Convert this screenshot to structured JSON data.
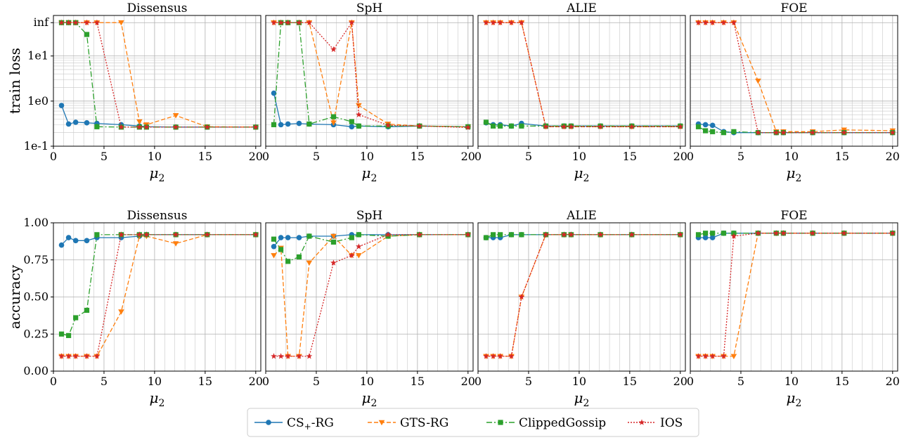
{
  "colors": {
    "CS+-RG": "#1f77b4",
    "GTS-RG": "#ff7f0e",
    "ClippedGossip": "#2ca02c",
    "IOS": "#d62728"
  },
  "legend": {
    "items": [
      {
        "key": "CS+-RG",
        "label_main": "CS",
        "label_sub": "+",
        "label_rest": "-RG"
      },
      {
        "key": "GTS-RG",
        "label": "GTS-RG"
      },
      {
        "key": "ClippedGossip",
        "label": "ClippedGossip"
      },
      {
        "key": "IOS",
        "label": "IOS"
      }
    ]
  },
  "chart_data": [
    {
      "type": "line",
      "title": "Dissensus",
      "metric": "train loss",
      "xlabel": "μ2",
      "ylabel": "train loss",
      "yscale": "log",
      "xlim": [
        0,
        20.5
      ],
      "xticks": [
        0,
        5,
        10,
        15,
        20
      ],
      "yticks": [
        "1e-1",
        "1e0",
        "1e1",
        "inf"
      ],
      "grid": true,
      "series": [
        {
          "name": "CS+-RG",
          "x": [
            0.8,
            1.5,
            2.2,
            3.3,
            4.3,
            6.7,
            8.5,
            9.2,
            12.1,
            15.2,
            20
          ],
          "y": [
            0.8,
            0.31,
            0.34,
            0.33,
            0.32,
            0.3,
            0.28,
            0.27,
            0.265,
            0.265,
            0.265
          ]
        },
        {
          "name": "GTS-RG",
          "x": [
            0.8,
            1.5,
            2.2,
            3.3,
            4.3,
            6.7,
            8.5,
            9.2,
            12.1,
            15.2,
            20
          ],
          "y": [
            "inf",
            "inf",
            "inf",
            "inf",
            "inf",
            "inf",
            0.35,
            0.3,
            0.48,
            0.27,
            0.265
          ]
        },
        {
          "name": "ClippedGossip",
          "x": [
            0.8,
            1.5,
            2.2,
            3.3,
            4.3,
            6.7,
            8.5,
            9.2,
            12.1,
            15.2,
            20
          ],
          "y": [
            "inf",
            "inf",
            "inf",
            30,
            0.27,
            0.265,
            0.265,
            0.265,
            0.265,
            0.265,
            0.265
          ]
        },
        {
          "name": "IOS",
          "x": [
            0.8,
            1.5,
            2.2,
            3.3,
            4.3,
            6.7,
            8.5,
            9.2,
            12.1,
            15.2,
            20
          ],
          "y": [
            "inf",
            "inf",
            "inf",
            "inf",
            "inf",
            0.265,
            0.265,
            0.265,
            0.265,
            0.265,
            0.265
          ]
        }
      ]
    },
    {
      "type": "line",
      "title": "SpH",
      "metric": "train loss",
      "xlabel": "μ2",
      "yscale": "log",
      "xlim": [
        0,
        20.5
      ],
      "xticks": [
        0,
        5,
        10,
        15,
        20
      ],
      "grid": true,
      "series": [
        {
          "name": "CS+-RG",
          "x": [
            0.8,
            1.5,
            2.2,
            3.3,
            4.3,
            6.7,
            8.5,
            9.2,
            12.1,
            15.2,
            20
          ],
          "y": [
            1.5,
            0.3,
            0.31,
            0.32,
            0.31,
            0.3,
            0.27,
            0.28,
            0.27,
            0.28,
            0.27
          ]
        },
        {
          "name": "GTS-RG",
          "x": [
            0.8,
            1.5,
            2.2,
            3.3,
            4.3,
            6.7,
            8.5,
            9.2,
            12.1,
            15.2,
            20
          ],
          "y": [
            "inf",
            "inf",
            "inf",
            "inf",
            "inf",
            0.33,
            "inf",
            0.8,
            0.31,
            0.28,
            0.27
          ]
        },
        {
          "name": "ClippedGossip",
          "x": [
            0.8,
            1.5,
            2.2,
            3.3,
            4.3,
            6.7,
            8.5,
            9.2,
            12.1,
            15.2,
            20
          ],
          "y": [
            0.3,
            "inf",
            "inf",
            "inf",
            0.31,
            0.45,
            0.35,
            0.28,
            0.28,
            0.28,
            0.27
          ]
        },
        {
          "name": "IOS",
          "x": [
            0.8,
            1.5,
            2.2,
            3.3,
            4.3,
            6.7,
            8.5,
            9.2,
            12.1,
            15.2,
            20
          ],
          "y": [
            "inf",
            "inf",
            "inf",
            "inf",
            "inf",
            14,
            "inf",
            0.5,
            0.29,
            0.28,
            0.26
          ]
        }
      ]
    },
    {
      "type": "line",
      "title": "ALIE",
      "metric": "train loss",
      "xlabel": "μ2",
      "yscale": "log",
      "xlim": [
        0,
        20.5
      ],
      "xticks": [
        0,
        5,
        10,
        15,
        20
      ],
      "grid": true,
      "series": [
        {
          "name": "CS+-RG",
          "x": [
            0.8,
            1.5,
            2.2,
            3.3,
            4.3,
            6.7,
            8.5,
            9.2,
            12.1,
            15.2,
            20
          ],
          "y": [
            0.33,
            0.3,
            0.3,
            0.28,
            0.32,
            0.28,
            0.28,
            0.28,
            0.28,
            0.28,
            0.28
          ]
        },
        {
          "name": "GTS-RG",
          "x": [
            0.8,
            1.5,
            2.2,
            3.3,
            4.3,
            6.7,
            8.5,
            9.2,
            12.1,
            15.2,
            20
          ],
          "y": [
            "inf",
            "inf",
            "inf",
            "inf",
            "inf",
            0.27,
            0.27,
            0.27,
            0.27,
            0.27,
            0.27
          ]
        },
        {
          "name": "ClippedGossip",
          "x": [
            0.8,
            1.5,
            2.2,
            3.3,
            4.3,
            6.7,
            8.5,
            9.2,
            12.1,
            15.2,
            20
          ],
          "y": [
            0.34,
            0.28,
            0.28,
            0.28,
            0.28,
            0.28,
            0.28,
            0.28,
            0.28,
            0.28,
            0.28
          ]
        },
        {
          "name": "IOS",
          "x": [
            0.8,
            1.5,
            2.2,
            3.3,
            4.3,
            6.7,
            8.5,
            9.2,
            12.1,
            15.2,
            20
          ],
          "y": [
            "inf",
            "inf",
            "inf",
            "inf",
            "inf",
            0.27,
            0.27,
            0.27,
            0.27,
            0.27,
            0.27
          ]
        }
      ]
    },
    {
      "type": "line",
      "title": "FOE",
      "metric": "train loss",
      "xlabel": "μ2",
      "yscale": "log",
      "xlim": [
        0,
        20.5
      ],
      "xticks": [
        0,
        5,
        10,
        15,
        20
      ],
      "grid": true,
      "series": [
        {
          "name": "CS+-RG",
          "x": [
            0.8,
            1.5,
            2.2,
            3.3,
            4.3,
            6.7,
            8.5,
            9.2,
            12.1,
            15.2,
            20
          ],
          "y": [
            0.31,
            0.3,
            0.29,
            0.21,
            0.2,
            0.2,
            0.2,
            0.2,
            0.2,
            0.2,
            0.2
          ]
        },
        {
          "name": "GTS-RG",
          "x": [
            0.8,
            1.5,
            2.2,
            3.3,
            4.3,
            6.7,
            8.5,
            9.2,
            12.1,
            15.2,
            20
          ],
          "y": [
            "inf",
            "inf",
            "inf",
            "inf",
            "inf",
            2.8,
            0.21,
            0.21,
            0.21,
            0.23,
            0.22
          ]
        },
        {
          "name": "ClippedGossip",
          "x": [
            0.8,
            1.5,
            2.2,
            3.3,
            4.3,
            6.7,
            8.5,
            9.2,
            12.1,
            15.2,
            20
          ],
          "y": [
            0.27,
            0.22,
            0.21,
            0.2,
            0.21,
            0.2,
            0.2,
            0.2,
            0.2,
            0.2,
            0.2
          ]
        },
        {
          "name": "IOS",
          "x": [
            0.8,
            1.5,
            2.2,
            3.3,
            4.3,
            6.7,
            8.5,
            9.2,
            12.1,
            15.2,
            20
          ],
          "y": [
            "inf",
            "inf",
            "inf",
            "inf",
            "inf",
            0.2,
            0.2,
            0.2,
            0.2,
            0.2,
            0.2
          ]
        }
      ]
    },
    {
      "type": "line",
      "title": "Dissensus",
      "metric": "accuracy",
      "xlabel": "μ2",
      "ylabel": "accuracy",
      "xlim": [
        0,
        20.5
      ],
      "ylim": [
        0,
        1.0
      ],
      "xticks": [
        0,
        5,
        10,
        15,
        20
      ],
      "yticks": [
        "0.00",
        "0.25",
        "0.50",
        "0.75",
        "1.00"
      ],
      "grid": true,
      "series": [
        {
          "name": "CS+-RG",
          "x": [
            0.8,
            1.5,
            2.2,
            3.3,
            4.3,
            6.7,
            8.5,
            9.2,
            12.1,
            15.2,
            20
          ],
          "y": [
            0.85,
            0.9,
            0.88,
            0.88,
            0.9,
            0.9,
            0.91,
            0.92,
            0.92,
            0.92,
            0.92
          ]
        },
        {
          "name": "GTS-RG",
          "x": [
            0.8,
            1.5,
            2.2,
            3.3,
            4.3,
            6.7,
            8.5,
            9.2,
            12.1,
            15.2,
            20
          ],
          "y": [
            0.1,
            0.1,
            0.1,
            0.1,
            0.1,
            0.4,
            0.91,
            0.91,
            0.86,
            0.92,
            0.92
          ]
        },
        {
          "name": "ClippedGossip",
          "x": [
            0.8,
            1.5,
            2.2,
            3.3,
            4.3,
            6.7,
            8.5,
            9.2,
            12.1,
            15.2,
            20
          ],
          "y": [
            0.25,
            0.24,
            0.36,
            0.41,
            0.92,
            0.92,
            0.92,
            0.92,
            0.92,
            0.92,
            0.92
          ]
        },
        {
          "name": "IOS",
          "x": [
            0.8,
            1.5,
            2.2,
            3.3,
            4.3,
            6.7,
            8.5,
            9.2,
            12.1,
            15.2,
            20
          ],
          "y": [
            0.1,
            0.1,
            0.1,
            0.1,
            0.1,
            0.92,
            0.92,
            0.92,
            0.92,
            0.92,
            0.92
          ]
        }
      ]
    },
    {
      "type": "line",
      "title": "SpH",
      "metric": "accuracy",
      "xlabel": "μ2",
      "xlim": [
        0,
        20.5
      ],
      "ylim": [
        0,
        1.0
      ],
      "xticks": [
        0,
        5,
        10,
        15,
        20
      ],
      "grid": true,
      "series": [
        {
          "name": "CS+-RG",
          "x": [
            0.8,
            1.5,
            2.2,
            3.3,
            4.3,
            6.7,
            8.5,
            9.2,
            12.1,
            15.2,
            20
          ],
          "y": [
            0.84,
            0.9,
            0.9,
            0.9,
            0.91,
            0.91,
            0.92,
            0.92,
            0.92,
            0.92,
            0.92
          ]
        },
        {
          "name": "GTS-RG",
          "x": [
            0.8,
            1.5,
            2.2,
            3.3,
            4.3,
            6.7,
            8.5,
            9.2,
            12.1,
            15.2,
            20
          ],
          "y": [
            0.78,
            0.83,
            0.1,
            0.1,
            0.73,
            0.91,
            0.78,
            0.78,
            0.91,
            0.92,
            0.92
          ]
        },
        {
          "name": "ClippedGossip",
          "x": [
            0.8,
            1.5,
            2.2,
            3.3,
            4.3,
            6.7,
            8.5,
            9.2,
            12.1,
            15.2,
            20
          ],
          "y": [
            0.89,
            0.82,
            0.74,
            0.77,
            0.91,
            0.87,
            0.9,
            0.92,
            0.91,
            0.92,
            0.92
          ]
        },
        {
          "name": "IOS",
          "x": [
            0.8,
            1.5,
            2.2,
            3.3,
            4.3,
            6.7,
            8.5,
            9.2,
            12.1,
            15.2,
            20
          ],
          "y": [
            0.1,
            0.1,
            0.1,
            0.1,
            0.1,
            0.73,
            0.78,
            0.84,
            0.92,
            0.92,
            0.92
          ]
        }
      ]
    },
    {
      "type": "line",
      "title": "ALIE",
      "metric": "accuracy",
      "xlabel": "μ2",
      "xlim": [
        0,
        20.5
      ],
      "ylim": [
        0,
        1.0
      ],
      "xticks": [
        0,
        5,
        10,
        15,
        20
      ],
      "grid": true,
      "series": [
        {
          "name": "CS+-RG",
          "x": [
            0.8,
            1.5,
            2.2,
            3.3,
            4.3,
            6.7,
            8.5,
            9.2,
            12.1,
            15.2,
            20
          ],
          "y": [
            0.9,
            0.9,
            0.9,
            0.92,
            0.92,
            0.92,
            0.92,
            0.92,
            0.92,
            0.92,
            0.92
          ]
        },
        {
          "name": "GTS-RG",
          "x": [
            0.8,
            1.5,
            2.2,
            3.3,
            4.3,
            6.7,
            8.5,
            9.2,
            12.1,
            15.2,
            20
          ],
          "y": [
            0.1,
            0.1,
            0.1,
            0.1,
            0.5,
            0.92,
            0.92,
            0.92,
            0.92,
            0.92,
            0.92
          ]
        },
        {
          "name": "ClippedGossip",
          "x": [
            0.8,
            1.5,
            2.2,
            3.3,
            4.3,
            6.7,
            8.5,
            9.2,
            12.1,
            15.2,
            20
          ],
          "y": [
            0.9,
            0.92,
            0.92,
            0.92,
            0.92,
            0.92,
            0.92,
            0.92,
            0.92,
            0.92,
            0.92
          ]
        },
        {
          "name": "IOS",
          "x": [
            0.8,
            1.5,
            2.2,
            3.3,
            4.3,
            6.7,
            8.5,
            9.2,
            12.1,
            15.2,
            20
          ],
          "y": [
            0.1,
            0.1,
            0.1,
            0.1,
            0.5,
            0.92,
            0.92,
            0.92,
            0.92,
            0.92,
            0.92
          ]
        }
      ]
    },
    {
      "type": "line",
      "title": "FOE",
      "metric": "accuracy",
      "xlabel": "μ2",
      "xlim": [
        0,
        20.5
      ],
      "ylim": [
        0,
        1.0
      ],
      "xticks": [
        0,
        5,
        10,
        15,
        20
      ],
      "grid": true,
      "series": [
        {
          "name": "CS+-RG",
          "x": [
            0.8,
            1.5,
            2.2,
            3.3,
            4.3,
            6.7,
            8.5,
            9.2,
            12.1,
            15.2,
            20
          ],
          "y": [
            0.9,
            0.9,
            0.9,
            0.93,
            0.93,
            0.93,
            0.93,
            0.93,
            0.93,
            0.93,
            0.93
          ]
        },
        {
          "name": "GTS-RG",
          "x": [
            0.8,
            1.5,
            2.2,
            3.3,
            4.3,
            6.7,
            8.5,
            9.2,
            12.1,
            15.2,
            20
          ],
          "y": [
            0.1,
            0.1,
            0.1,
            0.1,
            0.1,
            0.93,
            0.93,
            0.93,
            0.93,
            0.93,
            0.93
          ]
        },
        {
          "name": "ClippedGossip",
          "x": [
            0.8,
            1.5,
            2.2,
            3.3,
            4.3,
            6.7,
            8.5,
            9.2,
            12.1,
            15.2,
            20
          ],
          "y": [
            0.92,
            0.93,
            0.93,
            0.93,
            0.93,
            0.93,
            0.93,
            0.93,
            0.93,
            0.93,
            0.93
          ]
        },
        {
          "name": "IOS",
          "x": [
            0.8,
            1.5,
            2.2,
            3.3,
            4.3,
            6.7,
            8.5,
            9.2,
            12.1,
            15.2,
            20
          ],
          "y": [
            0.1,
            0.1,
            0.1,
            0.1,
            0.91,
            0.93,
            0.93,
            0.93,
            0.93,
            0.93,
            0.93
          ]
        }
      ]
    }
  ]
}
